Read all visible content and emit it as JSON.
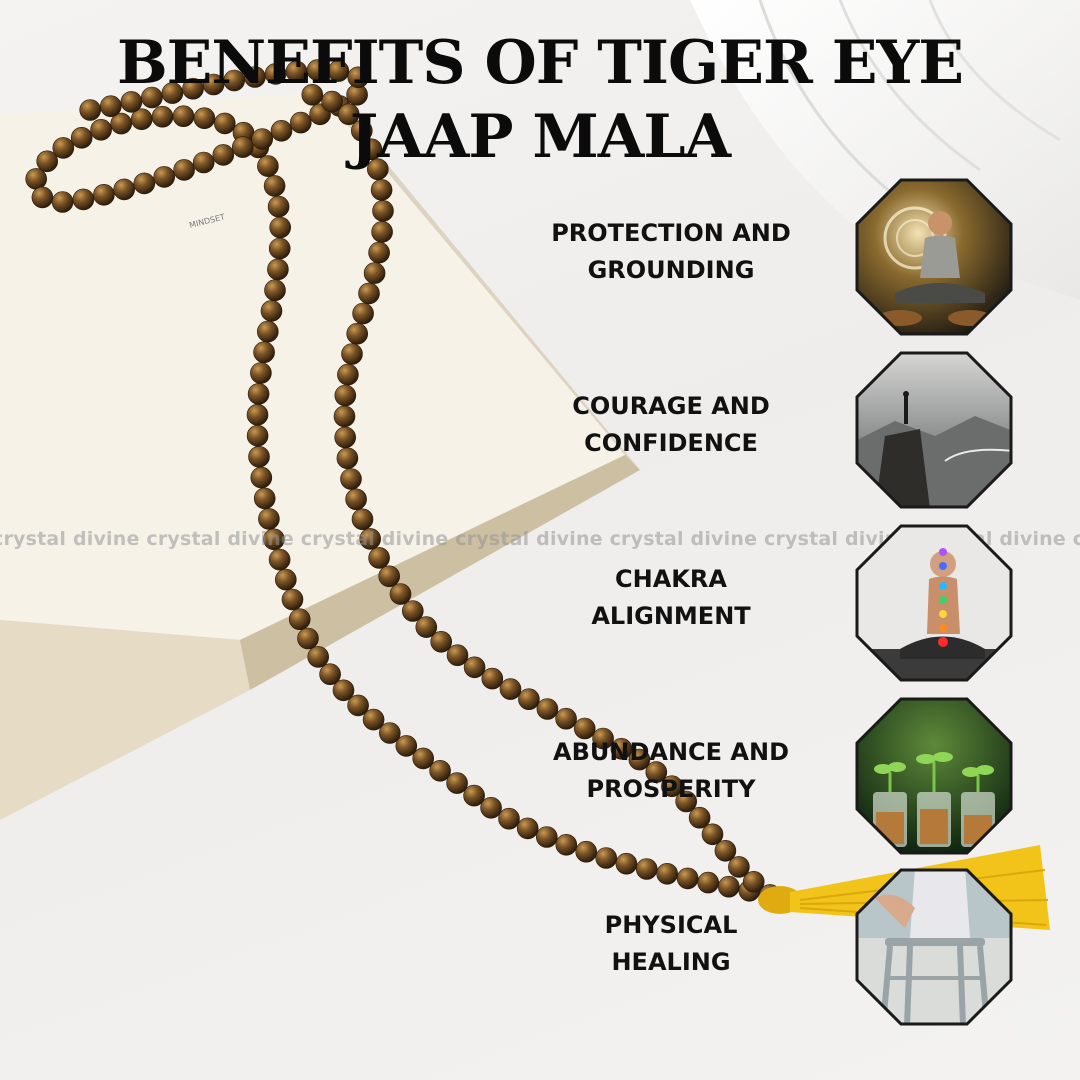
{
  "title": {
    "line1": "BENEFITS OF TIGER EYE",
    "line2": "JAAP MALA"
  },
  "watermark": "crystal divine crystal divine crystal divine crystal divine crystal divine crystal divine crystal divine crystal divine",
  "book_spine_text": "MINDSET",
  "benefits": [
    {
      "line1": "PROTECTION AND",
      "line2": "GROUNDING",
      "image": "meditating-man-icon"
    },
    {
      "line1": "COURAGE AND",
      "line2": "CONFIDENCE",
      "image": "mountain-summit-icon"
    },
    {
      "line1": "CHAKRA",
      "line2": "ALIGNMENT",
      "image": "chakra-meditation-icon"
    },
    {
      "line1": "ABUNDANCE AND",
      "line2": "PROSPERITY",
      "image": "coin-jar-sprouts-icon"
    },
    {
      "line1": "PHYSICAL",
      "line2": "HEALING",
      "image": "walker-support-icon"
    }
  ],
  "colors": {
    "title": "#0b0b0b",
    "label": "#111111",
    "bead": "#6b4a22",
    "tassel": "#f2c318",
    "octagon_border": "#1a1a1a"
  }
}
